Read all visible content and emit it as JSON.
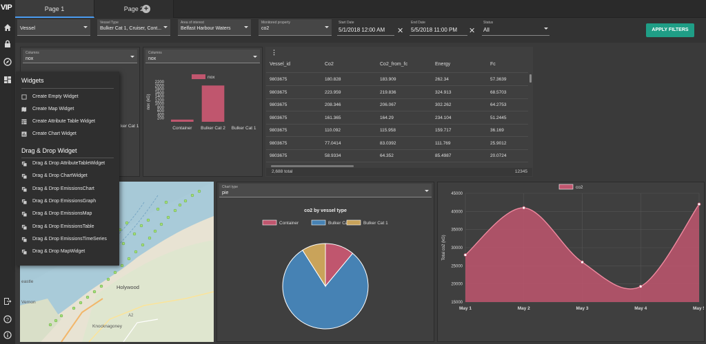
{
  "app": {
    "logo": "VIP"
  },
  "tabs": [
    {
      "label": "Page 1"
    },
    {
      "label": "Page 2"
    }
  ],
  "filters": {
    "vessel": {
      "value": "Vessel"
    },
    "vessel_type": {
      "label": "Vessel Type",
      "value": "Bulker Cat 1, Cruiser, Cont..."
    },
    "area": {
      "label": "Area of interest",
      "value": "Belfast Harbour Waters"
    },
    "monitored": {
      "label": "Monitored property",
      "value": "co2"
    },
    "start_date": {
      "label": "Start Date",
      "value": "5/1/2018 12:00 AM"
    },
    "end_date": {
      "label": "End Date",
      "value": "5/5/2018 11:00 PM"
    },
    "status": {
      "label": "Status",
      "value": "All"
    },
    "apply_label": "APPLY FILTERS"
  },
  "widget_menu": {
    "title": "Widgets",
    "items": [
      "Create Empty Widget",
      "Create Map Widget",
      "Create Attribute Table Widget",
      "Create Chart Widget"
    ],
    "dnd_title": "Drag & Drop Widget",
    "dnd_items": [
      "Drag & Drop AttributeTableWidget",
      "Drag & Drop ChartWidget",
      "Drag & Drop EmissionsChart",
      "Drag & Drop EmissionsGraph",
      "Drag & Drop EmissionsMap",
      "Drag & Drop EmissionsTable",
      "Drag & Drop EmissionsTimeSeries",
      "Drag & Drop MapWidget"
    ]
  },
  "panel1": {
    "columns_label": "Columns",
    "columns_value": "nox",
    "peek_label": "ker Cat 1"
  },
  "panel2": {
    "columns_label": "Columns",
    "columns_value": "nox"
  },
  "table": {
    "columns": [
      "Vessel_id",
      "Co2",
      "Co2_from_fc",
      "Energy",
      "Fc"
    ],
    "rows": [
      [
        "9803675",
        "180.828",
        "183.909",
        "262.34",
        "57.3639"
      ],
      [
        "9803675",
        "223.959",
        "219.836",
        "324.913",
        "68.5703"
      ],
      [
        "9803675",
        "208.346",
        "206.067",
        "302.262",
        "64.2753"
      ],
      [
        "9803675",
        "161.365",
        "164.29",
        "234.104",
        "51.2445"
      ],
      [
        "9803675",
        "110.092",
        "115.958",
        "159.717",
        "36.169"
      ],
      [
        "9803675",
        "77.0414",
        "83.0392",
        "111.769",
        "25.9012"
      ],
      [
        "9803675",
        "58.9334",
        "64.352",
        "85.4987",
        "20.0724"
      ]
    ],
    "footer_total": "2,688 total",
    "footer_right": "12345"
  },
  "map": {
    "labels": [
      "Holywood",
      "Knocknagoney",
      "Vernon",
      "A2",
      "eastle"
    ]
  },
  "pie_panel": {
    "chart_type_label": "Chart type",
    "chart_type_value": "pie"
  },
  "colors": {
    "container": "#c0566e",
    "bulker2": "#4682b4",
    "bulker1": "#c9a35a",
    "apply": "#1f9e86",
    "co2": "#c0566e"
  },
  "chart_data": [
    {
      "type": "bar",
      "categories": [
        "Container",
        "Bulker Cat 2",
        "Bulker Cat 1"
      ],
      "series": [
        {
          "name": "nox",
          "values": [
            120,
            2000,
            0
          ]
        }
      ],
      "ylabel": "nox (kG)",
      "ylim": [
        0,
        2200
      ],
      "yticks": [
        200,
        400,
        600,
        800,
        1000,
        1200,
        1400,
        1600,
        1800,
        2000,
        2200
      ],
      "legend": "top"
    },
    {
      "type": "pie",
      "title": "co2 by vessel type",
      "categories": [
        "Container",
        "Bulker Cat 2",
        "Bulker Cat 1"
      ],
      "values": [
        11,
        80,
        9
      ],
      "legend": "top"
    },
    {
      "type": "area",
      "categories": [
        "May 1",
        "May 2",
        "May 3",
        "May 4",
        "May 5"
      ],
      "series": [
        {
          "name": "co2",
          "values": [
            28000,
            41000,
            26000,
            19300,
            42000
          ]
        }
      ],
      "ylabel": "Total co2 (kG)",
      "ylim": [
        15000,
        45000
      ],
      "yticks": [
        15000,
        20000,
        25000,
        30000,
        35000,
        40000,
        45000
      ],
      "legend": "top"
    }
  ]
}
